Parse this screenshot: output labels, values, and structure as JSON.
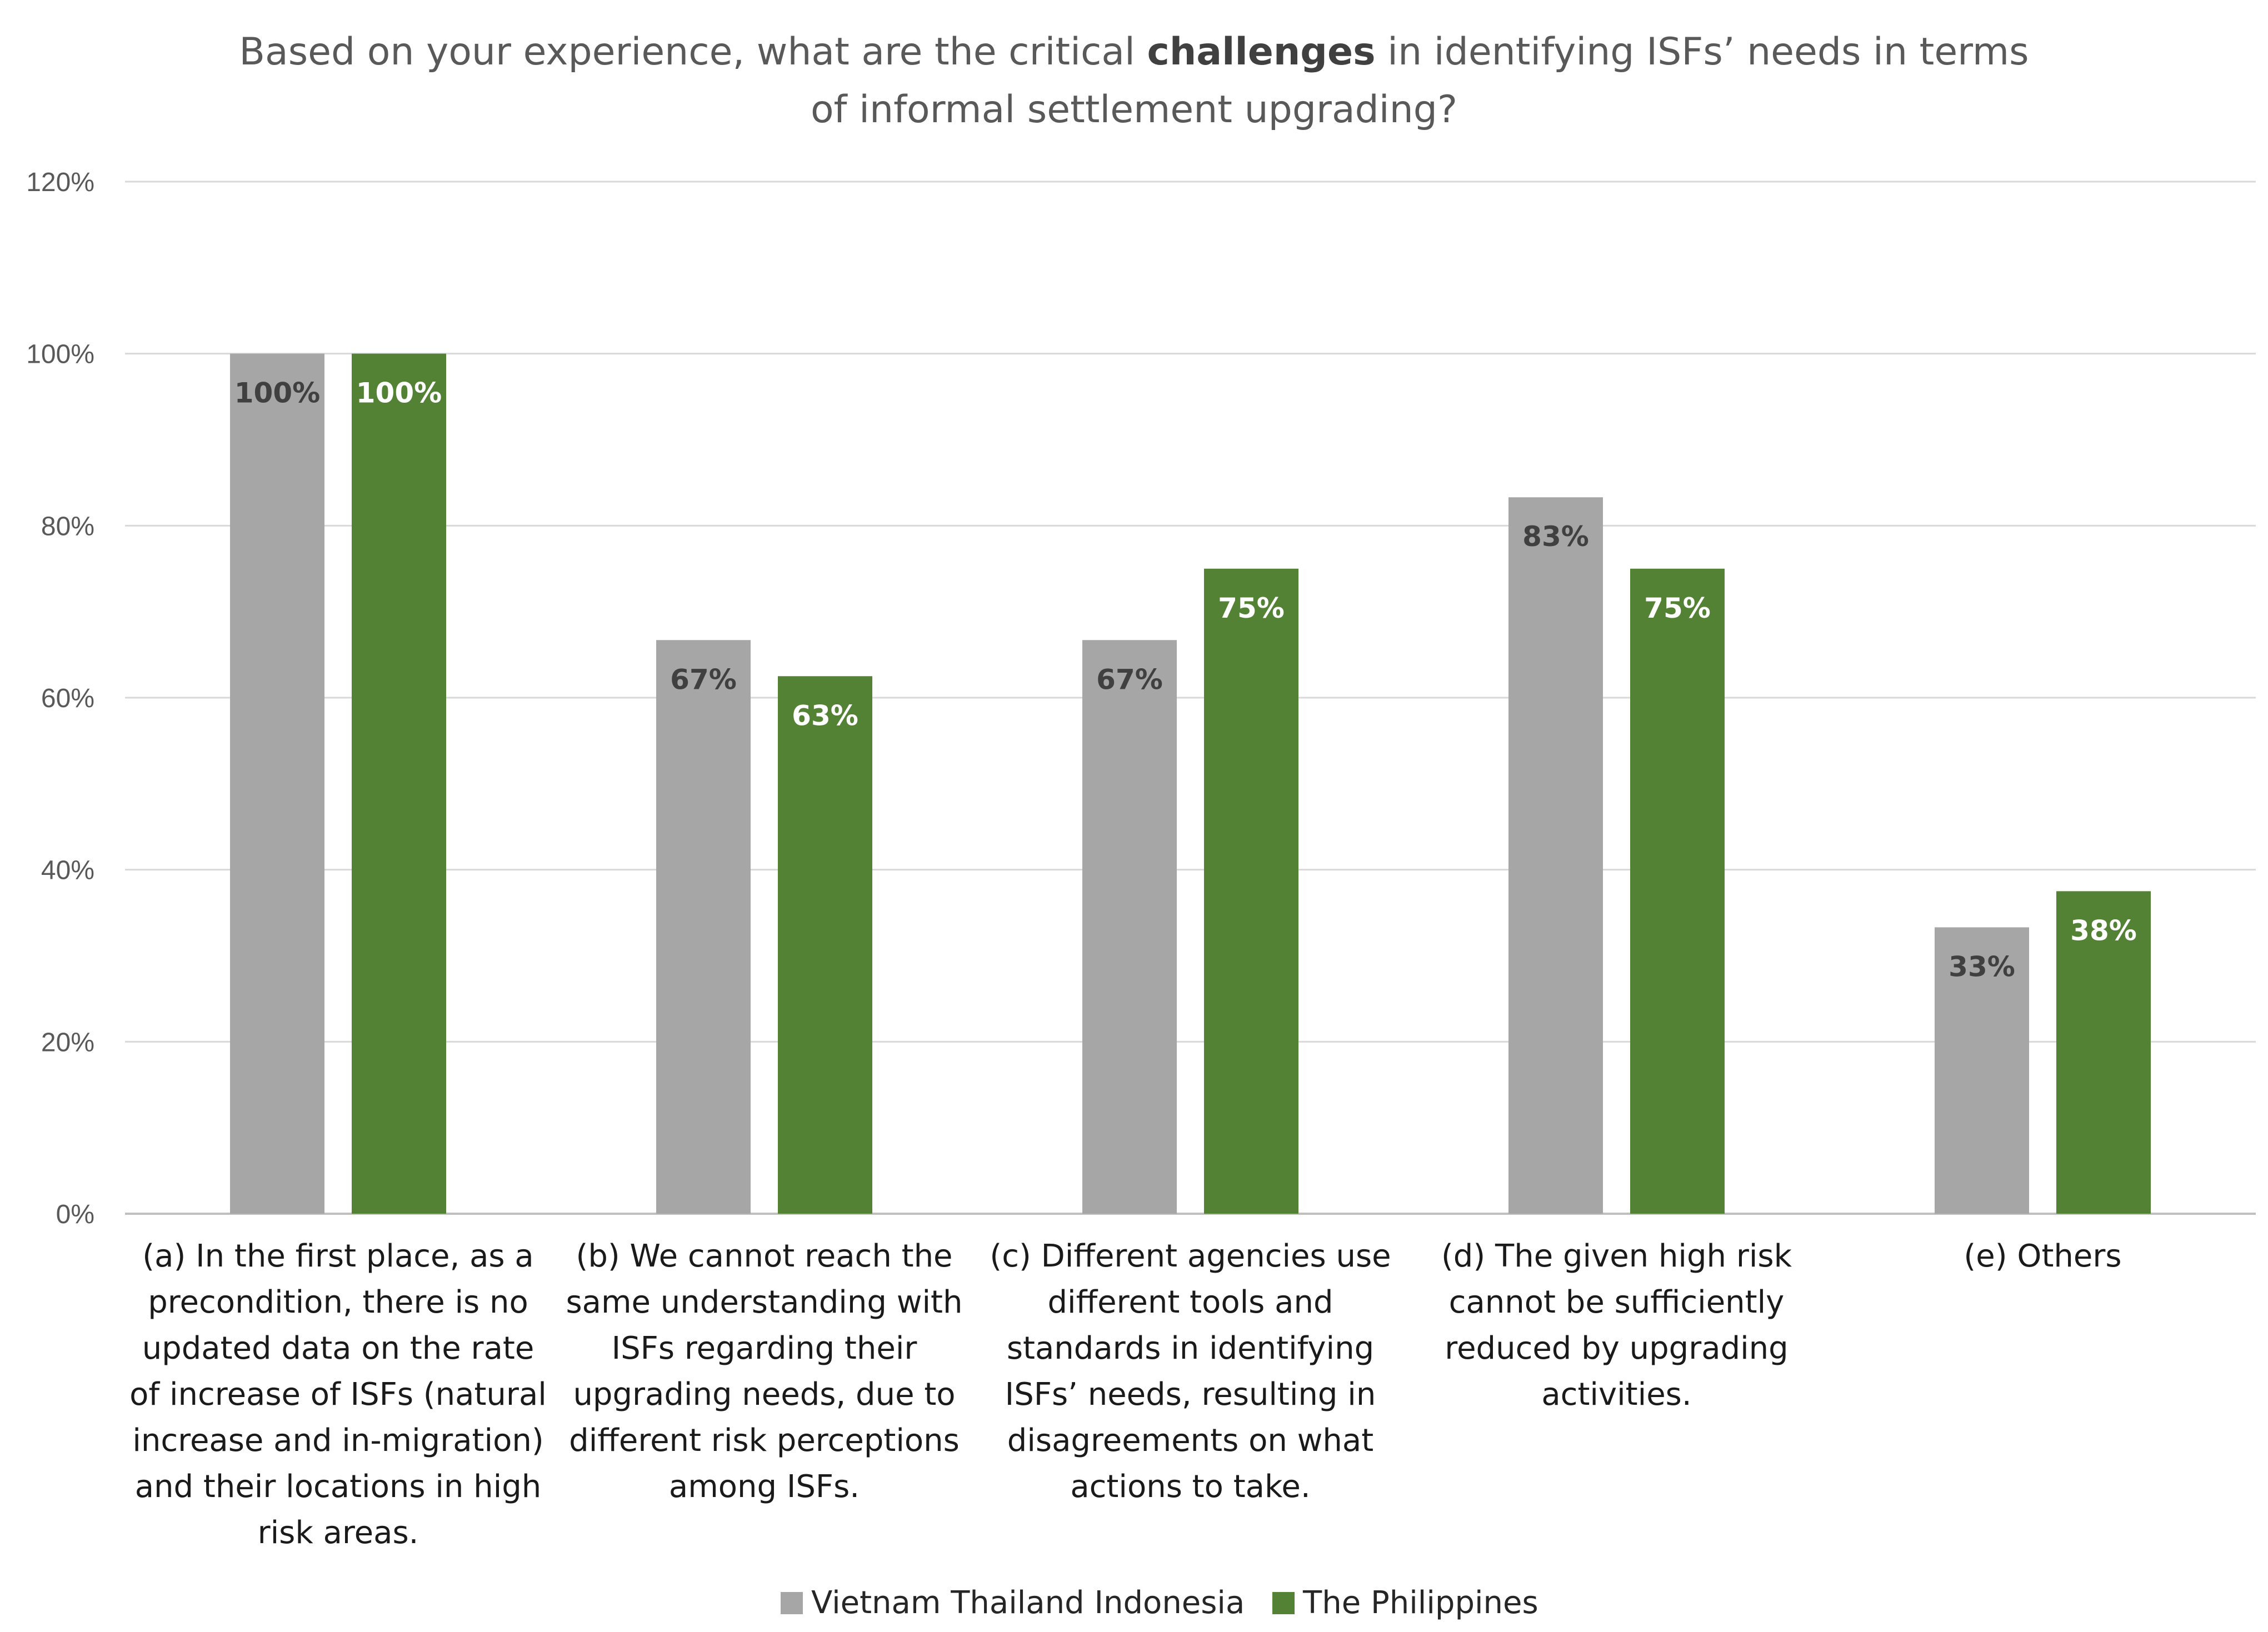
{
  "chart_data": {
    "type": "bar",
    "title": {
      "line1_before": "Based on your experience, what are the critical ",
      "line1_bold": "challenges",
      "line1_after": " in identifying ISFs’ needs in terms",
      "line2": "of informal settlement upgrading?"
    },
    "xlabel": "",
    "ylabel": "",
    "ylim": [
      0,
      120
    ],
    "yticks": [
      0,
      20,
      40,
      60,
      80,
      100,
      120
    ],
    "ytick_labels": [
      "0%",
      "20%",
      "40%",
      "60%",
      "80%",
      "100%",
      "120%"
    ],
    "grid": true,
    "legend_position": "bottom",
    "categories": [
      "(a) In the first place, as a precondition, there is no updated data on the rate of increase of ISFs (natural increase and in-migration) and their locations in high risk areas.",
      "(b) We cannot reach the same understanding with ISFs regarding their upgrading needs, due to different risk perceptions among ISFs.",
      "(c) Different agencies use different tools and standards in identifying ISFs’ needs, resulting in disagreements on what actions to take.",
      "(d) The given high risk cannot be sufficiently reduced by upgrading activities.",
      "(e) Others"
    ],
    "category_lines": [
      [
        "(a) In the first place, as a",
        "precondition, there is no",
        "updated data on the rate",
        "of increase of ISFs (natural",
        "increase and in-migration)",
        "and their locations in high",
        "risk areas."
      ],
      [
        "(b) We cannot reach the",
        "same understanding with",
        "ISFs regarding their",
        "upgrading needs, due to",
        "different risk perceptions",
        "among ISFs."
      ],
      [
        "(c) Different agencies use",
        "different tools and",
        "standards in identifying",
        "ISFs’ needs, resulting in",
        "disagreements on what",
        "actions to take."
      ],
      [
        "(d) The given high risk",
        "cannot be sufficiently",
        "reduced by upgrading",
        "activities."
      ],
      [
        "(e) Others"
      ]
    ],
    "series": [
      {
        "name": "Vietnam Thailand Indonesia",
        "color": "#a6a6a6",
        "label_color": "#404040",
        "values": [
          100,
          66.7,
          66.7,
          83.3,
          33.3
        ],
        "labels": [
          "100%",
          "67%",
          "67%",
          "83%",
          "33%"
        ]
      },
      {
        "name": "The Philippines",
        "color": "#548235",
        "label_color": "#ffffff",
        "values": [
          100,
          62.5,
          75,
          75,
          37.5
        ],
        "labels": [
          "100%",
          "63%",
          "75%",
          "75%",
          "38%"
        ]
      }
    ]
  }
}
